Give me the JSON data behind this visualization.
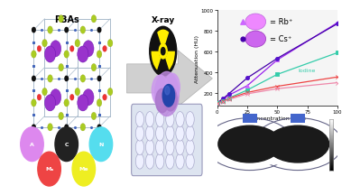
{
  "title": "PBAs",
  "left_bg": "#f0f0f8",
  "graph": {
    "xlabel": "Concentration (mM)",
    "ylabel": "Attenuation (HU)",
    "xlim": [
      0,
      100
    ],
    "ylim": [
      75,
      1000
    ],
    "yticks": [
      200,
      400,
      600,
      800,
      1000
    ],
    "xticks": [
      0,
      25,
      50,
      75,
      100
    ],
    "bg_color": "#f5f5f5",
    "series": {
      "Rb": {
        "color": "#9922ee",
        "marker_color": "#cc66ff",
        "marker": "^",
        "x": [
          0,
          5,
          10,
          25,
          50,
          100
        ],
        "y": [
          100,
          135,
          180,
          270,
          520,
          880
        ]
      },
      "Cs": {
        "color": "#4400aa",
        "marker_color": "#5511cc",
        "marker": "o",
        "x": [
          0,
          5,
          10,
          25,
          50,
          100
        ],
        "y": [
          105,
          145,
          195,
          345,
          535,
          870
        ]
      },
      "cyan_line": {
        "color": "#33ccaa",
        "marker_color": "#33ccaa",
        "marker": "s",
        "x": [
          0,
          5,
          10,
          25,
          50,
          100
        ],
        "y": [
          100,
          120,
          152,
          228,
          380,
          590
        ]
      },
      "red_line": {
        "color": "#ee4444",
        "marker_color": "#ee4444",
        "marker": "x",
        "x": [
          0,
          5,
          10,
          25,
          50,
          100
        ],
        "y": [
          100,
          118,
          148,
          205,
          265,
          355
        ]
      },
      "pink_line": {
        "color": "#ee88aa",
        "marker_color": "#ee88aa",
        "marker": "x",
        "x": [
          0,
          5,
          10,
          25,
          50,
          100
        ],
        "y": [
          95,
          112,
          138,
          192,
          242,
          300
        ]
      }
    },
    "legend_iodine_color": "#33ccaa",
    "legend_iodine_label": "Iodine",
    "legend_Rb_label": "= Rb⁺",
    "legend_Cs_label": "= Cs⁺",
    "rb_sphere_color": "#ee88ff",
    "cs_sphere_color": "#cc66ee",
    "rb_marker_triangle_color": "#cc66ff",
    "cs_marker_dot_color": "#4400aa"
  },
  "atom_colors": {
    "A": "#dd88ee",
    "C": "#222222",
    "N": "#55ddee",
    "MA": "#ee4444",
    "Me": "#eeee22"
  },
  "crystal": {
    "frame_color": "#aabbcc",
    "frame_lw": 0.7,
    "purple_atom_color": "#9933cc",
    "purple_atom_r": 0.048,
    "yellow_atom_color": "#aacc22",
    "yellow_atom_r": 0.022,
    "red_atom_color": "#ee3333",
    "red_atom_r": 0.018,
    "black_atom_color": "#111111",
    "black_atom_r": 0.014,
    "blue_bond_color": "#4466bb"
  }
}
